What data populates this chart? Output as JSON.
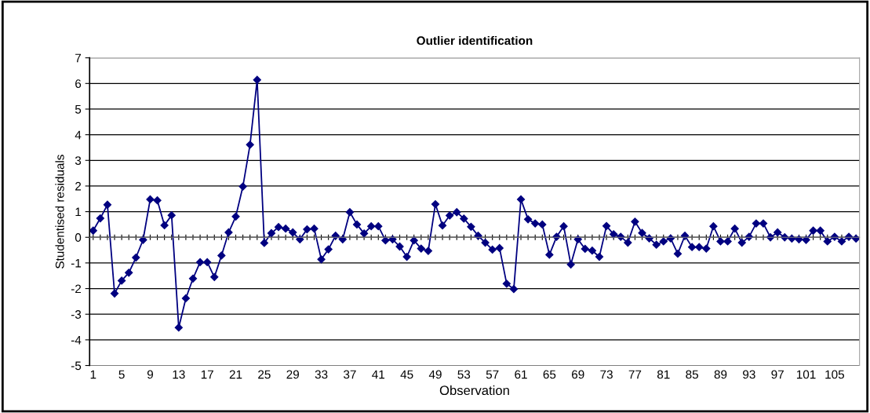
{
  "chart_data": {
    "type": "line",
    "title": "Outlier identification",
    "xlabel": "Observation",
    "ylabel": "Studentised residuals",
    "categories": [
      "1",
      null,
      null,
      null,
      "5",
      null,
      null,
      null,
      "9",
      null,
      null,
      null,
      "13",
      null,
      null,
      null,
      "17",
      null,
      null,
      null,
      "21",
      null,
      null,
      null,
      "25",
      null,
      null,
      null,
      "29",
      null,
      null,
      null,
      "33",
      null,
      null,
      null,
      "37",
      null,
      null,
      null,
      "41",
      null,
      null,
      null,
      "45",
      null,
      null,
      null,
      "49",
      null,
      null,
      null,
      "53",
      null,
      null,
      null,
      "57",
      null,
      null,
      null,
      "61",
      null,
      null,
      null,
      "65",
      null,
      null,
      null,
      "69",
      null,
      null,
      null,
      "73",
      null,
      null,
      null,
      "77",
      null,
      null,
      null,
      "81",
      null,
      null,
      null,
      "85",
      null,
      null,
      null,
      "89",
      null,
      null,
      null,
      "93",
      null,
      null,
      null,
      "97",
      null,
      null,
      null,
      "101",
      null,
      null,
      null,
      "105",
      null,
      null,
      null
    ],
    "series": [
      {
        "color": "#000080",
        "values": [
          0.26,
          0.74,
          1.27,
          -2.19,
          -1.69,
          -1.38,
          -0.79,
          -0.1,
          1.48,
          1.44,
          0.47,
          0.86,
          -3.52,
          -2.38,
          -1.61,
          -0.97,
          -0.97,
          -1.55,
          -0.71,
          0.19,
          0.81,
          1.98,
          3.61,
          6.14,
          -0.22,
          0.16,
          0.4,
          0.34,
          0.19,
          -0.08,
          0.31,
          0.34,
          -0.86,
          -0.47,
          0.06,
          -0.08,
          0.98,
          0.5,
          0.15,
          0.43,
          0.43,
          -0.12,
          -0.08,
          -0.36,
          -0.76,
          -0.12,
          -0.44,
          -0.53,
          1.29,
          0.46,
          0.85,
          0.98,
          0.73,
          0.41,
          0.06,
          -0.21,
          -0.48,
          -0.42,
          -1.81,
          -2.02,
          1.48,
          0.7,
          0.54,
          0.5,
          -0.68,
          0.02,
          0.43,
          -1.06,
          -0.08,
          -0.45,
          -0.52,
          -0.76,
          0.44,
          0.12,
          0.02,
          -0.21,
          0.61,
          0.17,
          -0.04,
          -0.29,
          -0.16,
          -0.04,
          -0.64,
          0.06,
          -0.38,
          -0.38,
          -0.44,
          0.43,
          -0.16,
          -0.16,
          0.34,
          -0.21,
          0.02,
          0.54,
          0.54,
          0.0,
          0.19,
          0.0,
          -0.05,
          -0.08,
          -0.1,
          0.26,
          0.26,
          -0.16,
          0.02,
          -0.16,
          0.02,
          -0.05
        ]
      }
    ],
    "ylim": [
      -5,
      7
    ],
    "yticks": [
      -5,
      -4,
      -3,
      -2,
      -1,
      0,
      1,
      2,
      3,
      4,
      5,
      6,
      7
    ],
    "grid": "y",
    "marker": "diamond",
    "line_style": "solid"
  }
}
